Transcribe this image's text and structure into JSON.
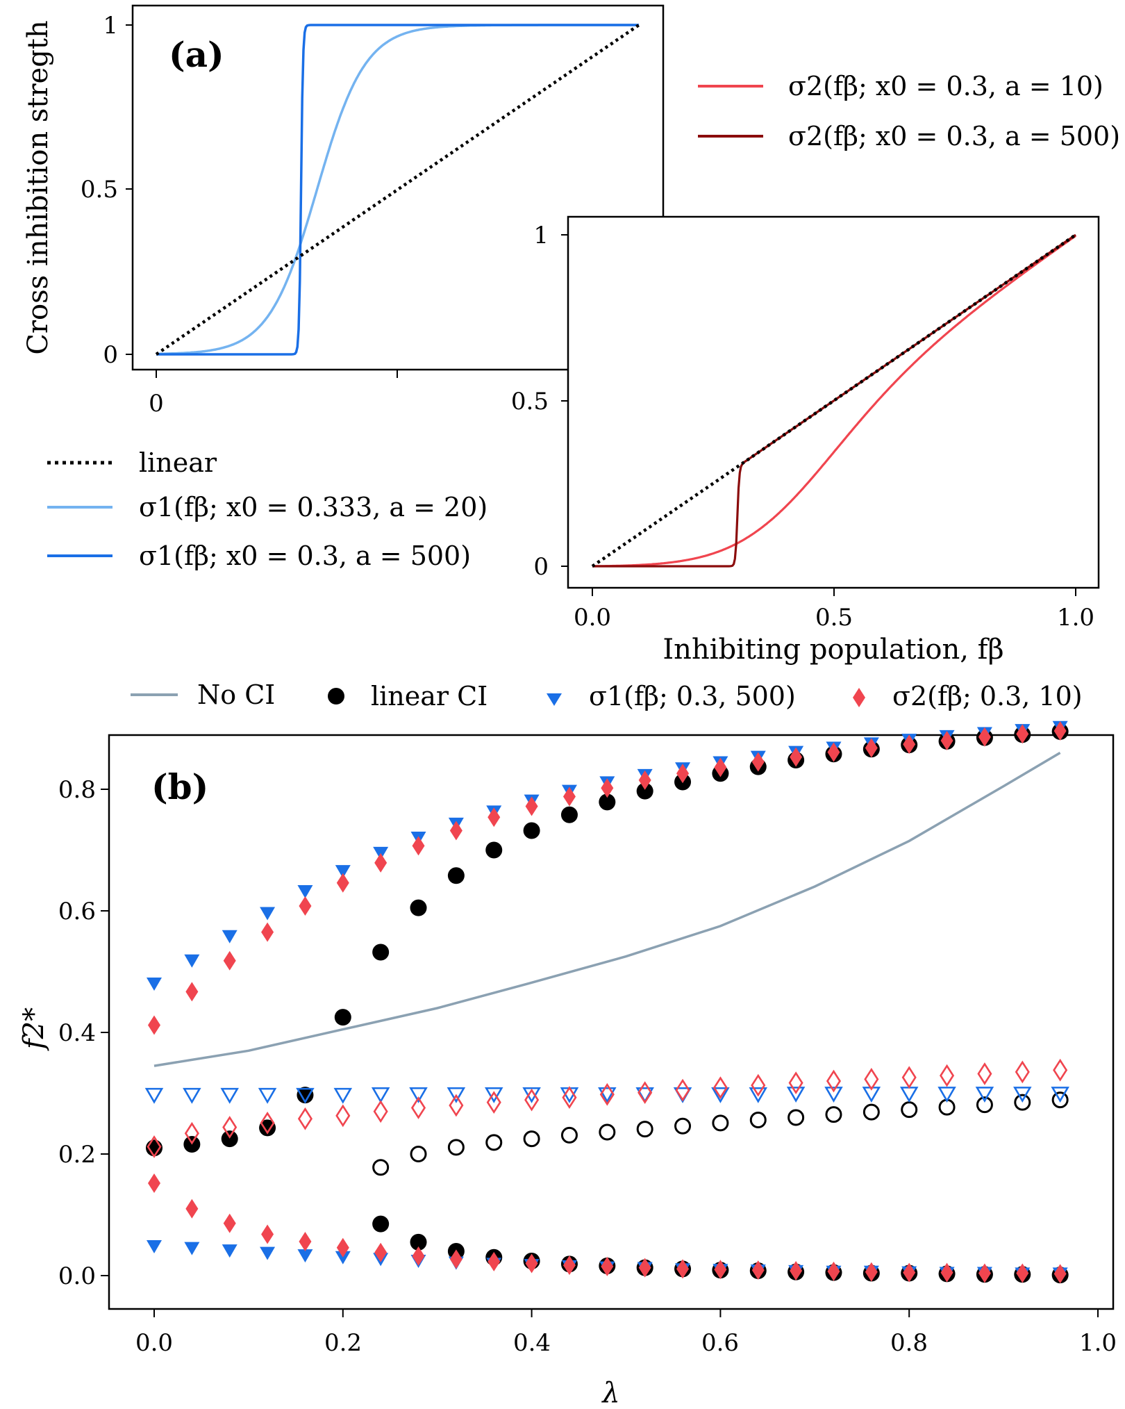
{
  "colors": {
    "linear": "#000000",
    "sigma1_smooth": "#74b3f0",
    "sigma1_sharp": "#1a6fe6",
    "sigma2_smooth": "#f0454f",
    "sigma2_sharp": "#8b0c0c",
    "no_ci": "#8ba1b2",
    "marker_blue": "#1a6fe6",
    "marker_red": "#f0454f"
  },
  "chart_data": [
    {
      "type": "line",
      "panel_label": "(a)",
      "ylabel": "Cross inhibition stregth",
      "xlim": [
        0,
        1
      ],
      "ylim": [
        0,
        1
      ],
      "xticks": [
        "0"
      ],
      "yticks": [
        "0",
        "0.5",
        "1"
      ],
      "series": [
        {
          "name": "linear",
          "function": "identity",
          "style": "dotted"
        },
        {
          "name": "σ1(fβ; x0 = 0.333, a = 20)",
          "function": "sigmoid",
          "x0": 0.333,
          "a": 20
        },
        {
          "name": "σ1(fβ; x0 = 0.3, a = 500)",
          "function": "sigmoid",
          "x0": 0.3,
          "a": 500
        }
      ],
      "legend": [
        "linear",
        "σ1(fβ; x0 = 0.333, a = 20)",
        "σ1(fβ; x0 = 0.3, a = 500)"
      ],
      "legend_placement": "below"
    },
    {
      "type": "line",
      "xlabel": "Inhibiting population, fβ",
      "xlim": [
        0,
        1
      ],
      "ylim": [
        0,
        1
      ],
      "xticks": [
        "0.0",
        "0.5",
        "1.0"
      ],
      "yticks": [
        "0",
        "0.5",
        "1"
      ],
      "series": [
        {
          "name": "linear",
          "function": "identity",
          "style": "dotted"
        },
        {
          "name": "σ2(fβ; x0 = 0.3, a = 10)",
          "function": "hybrid",
          "x0": 0.3,
          "a": 10
        },
        {
          "name": "σ2(fβ; x0 = 0.3, a = 500)",
          "function": "hybrid",
          "x0": 0.3,
          "a": 500
        }
      ],
      "legend": [
        "σ2(fβ; x0 = 0.3, a = 10)",
        "σ2(fβ; x0 = 0.3, a = 500)"
      ],
      "legend_placement": "top-right"
    },
    {
      "type": "scatter",
      "panel_label": "(b)",
      "xlabel": "λ",
      "ylabel": "f2*",
      "xlim": [
        -0.02,
        1.0
      ],
      "ylim": [
        -0.055,
        0.925
      ],
      "xticks": [
        "0.0",
        "0.2",
        "0.4",
        "0.6",
        "0.8",
        "1.0"
      ],
      "yticks": [
        "0.0",
        "0.2",
        "0.4",
        "0.6",
        "0.8"
      ],
      "legend": [
        "No CI",
        "linear CI",
        "σ1(fβ; 0.3, 500)",
        "σ2(fβ; 0.3, 10)"
      ],
      "legend_placement": "top",
      "x": [
        0.0,
        0.04,
        0.08,
        0.12,
        0.16,
        0.2,
        0.24,
        0.28,
        0.32,
        0.36,
        0.4,
        0.44,
        0.48,
        0.52,
        0.56,
        0.6,
        0.64,
        0.68,
        0.72,
        0.76,
        0.8,
        0.84,
        0.88,
        0.92,
        0.96
      ],
      "no_ci": {
        "x": [
          0.0,
          0.1,
          0.2,
          0.3,
          0.4,
          0.5,
          0.6,
          0.7,
          0.8,
          0.9,
          0.96
        ],
        "y": [
          0.345,
          0.37,
          0.405,
          0.44,
          0.482,
          0.525,
          0.575,
          0.64,
          0.715,
          0.805,
          0.86
        ]
      },
      "series": [
        {
          "name": "linear CI stable upper",
          "marker": "circle",
          "filled": true,
          "x": [
            0.2,
            0.24,
            0.28,
            0.32,
            0.36,
            0.4,
            0.44,
            0.48,
            0.52,
            0.56,
            0.6,
            0.64,
            0.68,
            0.72,
            0.76,
            0.8,
            0.84,
            0.88,
            0.92,
            0.96
          ],
          "y": [
            0.425,
            0.532,
            0.605,
            0.658,
            0.7,
            0.732,
            0.758,
            0.779,
            0.797,
            0.812,
            0.826,
            0.837,
            0.848,
            0.858,
            0.866,
            0.873,
            0.879,
            0.885,
            0.89,
            0.895
          ]
        },
        {
          "name": "linear CI stable lower",
          "marker": "circle",
          "filled": true,
          "x": [
            0.0,
            0.04,
            0.08,
            0.12,
            0.16,
            0.24,
            0.28,
            0.32,
            0.36,
            0.4,
            0.44,
            0.48,
            0.52,
            0.56,
            0.6,
            0.64,
            0.68,
            0.72,
            0.76,
            0.8,
            0.84,
            0.88,
            0.92,
            0.96
          ],
          "y": [
            0.21,
            0.216,
            0.225,
            0.243,
            0.297,
            0.085,
            0.055,
            0.04,
            0.03,
            0.024,
            0.019,
            0.016,
            0.013,
            0.011,
            0.009,
            0.008,
            0.006,
            0.005,
            0.004,
            0.004,
            0.003,
            0.002,
            0.002,
            0.001
          ]
        },
        {
          "name": "linear CI unstable",
          "marker": "circle",
          "filled": false,
          "x": [
            0.24,
            0.28,
            0.32,
            0.36,
            0.4,
            0.44,
            0.48,
            0.52,
            0.56,
            0.6,
            0.64,
            0.68,
            0.72,
            0.76,
            0.8,
            0.84,
            0.88,
            0.92,
            0.96
          ],
          "y": [
            0.178,
            0.2,
            0.211,
            0.219,
            0.225,
            0.231,
            0.236,
            0.241,
            0.246,
            0.251,
            0.256,
            0.26,
            0.265,
            0.269,
            0.273,
            0.277,
            0.281,
            0.285,
            0.289
          ]
        },
        {
          "name": "σ1 stable upper",
          "marker": "triangle-down",
          "filled": true,
          "x": [
            0.0,
            0.04,
            0.08,
            0.12,
            0.16,
            0.2,
            0.24,
            0.28,
            0.32,
            0.36,
            0.4,
            0.44,
            0.48,
            0.52,
            0.56,
            0.6,
            0.64,
            0.68,
            0.72,
            0.76,
            0.8,
            0.84,
            0.88,
            0.92,
            0.96
          ],
          "y": [
            0.48,
            0.518,
            0.558,
            0.596,
            0.632,
            0.665,
            0.695,
            0.72,
            0.743,
            0.763,
            0.781,
            0.797,
            0.811,
            0.823,
            0.834,
            0.844,
            0.853,
            0.861,
            0.868,
            0.875,
            0.881,
            0.887,
            0.892,
            0.897,
            0.902
          ]
        },
        {
          "name": "σ1 stable lower",
          "marker": "triangle-down",
          "filled": true,
          "x": [
            0.0,
            0.04,
            0.08,
            0.12,
            0.16,
            0.2,
            0.24,
            0.28,
            0.32,
            0.36,
            0.4,
            0.44,
            0.48,
            0.52,
            0.56,
            0.6,
            0.64,
            0.68,
            0.72,
            0.76,
            0.8,
            0.84,
            0.88,
            0.92,
            0.96
          ],
          "y": [
            0.048,
            0.045,
            0.041,
            0.037,
            0.033,
            0.03,
            0.027,
            0.024,
            0.021,
            0.019,
            0.017,
            0.015,
            0.013,
            0.012,
            0.01,
            0.009,
            0.008,
            0.007,
            0.006,
            0.006,
            0.005,
            0.004,
            0.004,
            0.003,
            0.003
          ]
        },
        {
          "name": "σ1 unstable",
          "marker": "triangle-down",
          "filled": false,
          "x": [
            0.0,
            0.04,
            0.08,
            0.12,
            0.16,
            0.2,
            0.24,
            0.28,
            0.32,
            0.36,
            0.4,
            0.44,
            0.48,
            0.52,
            0.56,
            0.6,
            0.64,
            0.68,
            0.72,
            0.76,
            0.8,
            0.84,
            0.88,
            0.92,
            0.96
          ],
          "y": [
            0.297,
            0.297,
            0.297,
            0.297,
            0.297,
            0.297,
            0.298,
            0.298,
            0.298,
            0.298,
            0.298,
            0.298,
            0.298,
            0.298,
            0.298,
            0.298,
            0.298,
            0.299,
            0.299,
            0.299,
            0.299,
            0.299,
            0.299,
            0.299,
            0.299
          ]
        },
        {
          "name": "σ2 stable upper",
          "marker": "diamond",
          "filled": true,
          "x": [
            0.0,
            0.04,
            0.08,
            0.12,
            0.16,
            0.2,
            0.24,
            0.28,
            0.32,
            0.36,
            0.4,
            0.44,
            0.48,
            0.52,
            0.56,
            0.6,
            0.64,
            0.68,
            0.72,
            0.76,
            0.8,
            0.84,
            0.88,
            0.92,
            0.96
          ],
          "y": [
            0.412,
            0.467,
            0.518,
            0.565,
            0.608,
            0.646,
            0.679,
            0.707,
            0.732,
            0.754,
            0.772,
            0.788,
            0.802,
            0.815,
            0.826,
            0.836,
            0.845,
            0.853,
            0.861,
            0.868,
            0.874,
            0.88,
            0.886,
            0.891,
            0.896
          ]
        },
        {
          "name": "σ2 stable lower",
          "marker": "diamond",
          "filled": true,
          "x": [
            0.0,
            0.04,
            0.08,
            0.12,
            0.16,
            0.2,
            0.24,
            0.28,
            0.32,
            0.36,
            0.4,
            0.44,
            0.48,
            0.52,
            0.56,
            0.6,
            0.64,
            0.68,
            0.72,
            0.76,
            0.8,
            0.84,
            0.88,
            0.92,
            0.96
          ],
          "y": [
            0.152,
            0.11,
            0.086,
            0.068,
            0.056,
            0.046,
            0.038,
            0.032,
            0.027,
            0.023,
            0.02,
            0.017,
            0.015,
            0.013,
            0.011,
            0.01,
            0.009,
            0.008,
            0.007,
            0.006,
            0.005,
            0.005,
            0.004,
            0.004,
            0.003
          ]
        },
        {
          "name": "σ2 unstable",
          "marker": "diamond",
          "filled": false,
          "x": [
            0.0,
            0.04,
            0.08,
            0.12,
            0.16,
            0.2,
            0.24,
            0.28,
            0.32,
            0.36,
            0.4,
            0.44,
            0.48,
            0.52,
            0.56,
            0.6,
            0.64,
            0.68,
            0.72,
            0.76,
            0.8,
            0.84,
            0.88,
            0.92,
            0.96
          ],
          "y": [
            0.212,
            0.234,
            0.244,
            0.251,
            0.258,
            0.263,
            0.27,
            0.276,
            0.28,
            0.285,
            0.289,
            0.293,
            0.298,
            0.301,
            0.305,
            0.309,
            0.313,
            0.317,
            0.32,
            0.323,
            0.326,
            0.329,
            0.332,
            0.335,
            0.338
          ]
        }
      ]
    }
  ]
}
